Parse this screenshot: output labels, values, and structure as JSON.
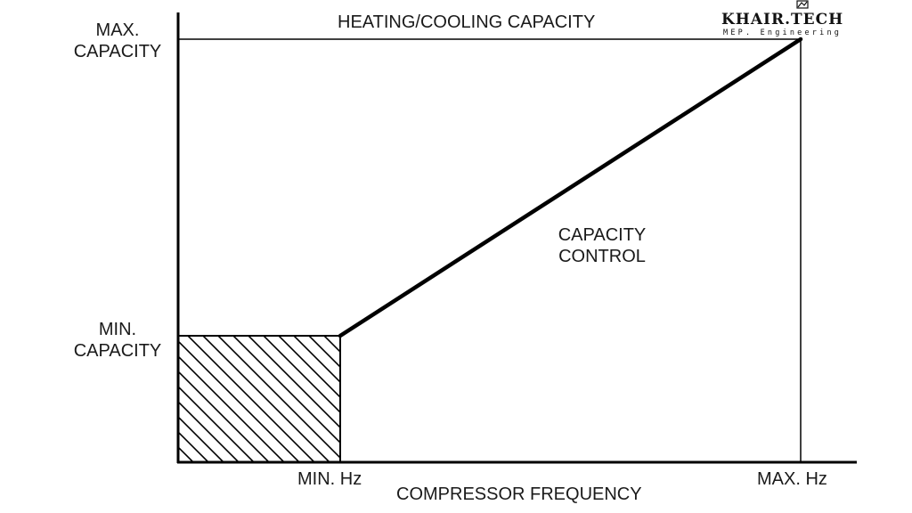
{
  "diagram": {
    "y_labels": {
      "max_capacity": [
        "MAX.",
        "CAPACITY"
      ],
      "min_capacity": [
        "MIN.",
        "CAPACITY"
      ]
    },
    "x_labels": {
      "min_hz": "MIN. Hz",
      "max_hz": "MAX. Hz",
      "axis_title": "COMPRESSOR FREQUENCY"
    },
    "top_line_label": "HEATING/COOLING CAPACITY",
    "region_label": [
      "CAPACITY",
      "CONTROL"
    ],
    "colors": {
      "line": "#000000",
      "text": "#1a1a1a",
      "background": "#ffffff"
    }
  },
  "logo": {
    "brand": "KHAIR.TECH",
    "tagline": "MEP. Engineering"
  }
}
